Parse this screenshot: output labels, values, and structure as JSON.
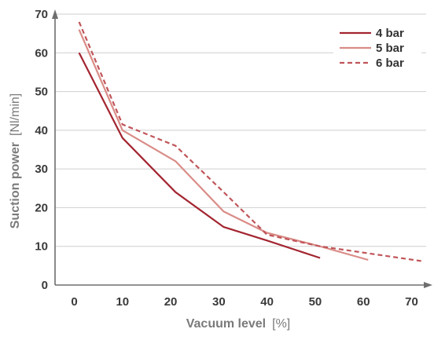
{
  "chart_data": {
    "type": "line",
    "xlabel": "Vacuum level",
    "xunit": "[%]",
    "ylabel": "Suction power",
    "yunit": "[Nl/min]",
    "xlim": [
      -4,
      74
    ],
    "ylim": [
      0,
      70
    ],
    "xticks": [
      0,
      10,
      20,
      30,
      40,
      50,
      60,
      70
    ],
    "yticks": [
      0,
      10,
      20,
      30,
      40,
      50,
      60,
      70
    ],
    "grid": "horizontal",
    "legend_position": "top-right",
    "series": [
      {
        "name": "4 bar",
        "color": "#a32530",
        "dash": "solid",
        "x": [
          1,
          10,
          21,
          31,
          40,
          51
        ],
        "y": [
          60,
          38,
          24,
          15,
          11.5,
          7
        ]
      },
      {
        "name": "5 bar",
        "color": "#d98c87",
        "dash": "solid",
        "x": [
          1,
          10,
          21,
          31,
          40,
          51,
          61
        ],
        "y": [
          66,
          40,
          32,
          19,
          13.5,
          10,
          6.5
        ]
      },
      {
        "name": "6 bar",
        "color": "#c05559",
        "dash": "dashed",
        "x": [
          1,
          10,
          21,
          31,
          40,
          51,
          72
        ],
        "y": [
          68,
          41.5,
          36,
          24,
          13,
          10,
          6.2
        ]
      }
    ]
  }
}
